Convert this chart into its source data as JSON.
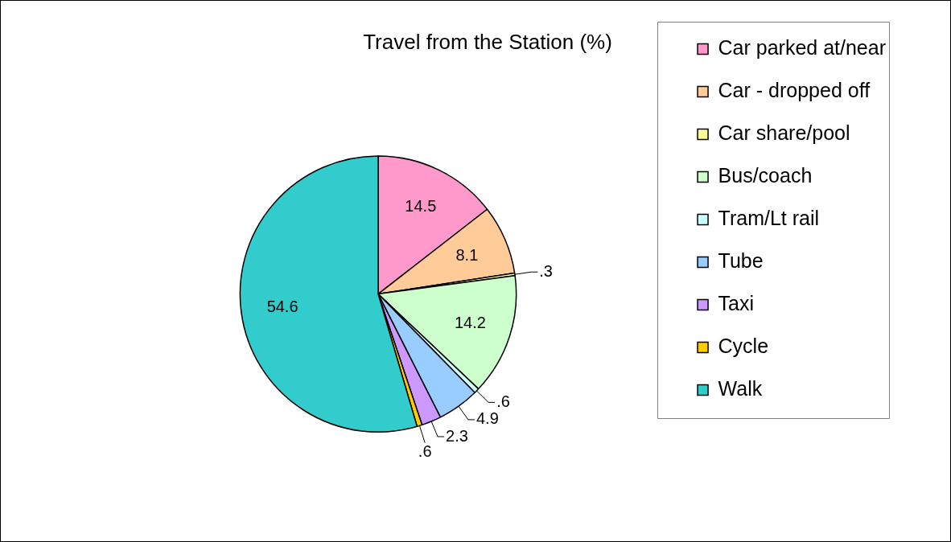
{
  "chart_data": {
    "type": "pie",
    "title": "Travel from the Station (%)",
    "categories": [
      "Car parked at/near",
      "Car - dropped off",
      "Car share/pool",
      "Bus/coach",
      "Tram/Lt rail",
      "Tube",
      "Taxi",
      "Cycle",
      "Walk"
    ],
    "values": [
      14.5,
      8.1,
      0.3,
      14.2,
      0.6,
      4.9,
      2.3,
      0.6,
      54.6
    ],
    "value_labels": [
      "14.5",
      "8.1",
      ".3",
      "14.2",
      ".6",
      "4.9",
      "2.3",
      ".6",
      "54.6"
    ],
    "colors": [
      "#ff99cc",
      "#ffcc99",
      "#ffff99",
      "#ccffcc",
      "#ccffff",
      "#99ccff",
      "#cc99ff",
      "#ffcc00",
      "#33cccc"
    ],
    "legend": "right"
  }
}
